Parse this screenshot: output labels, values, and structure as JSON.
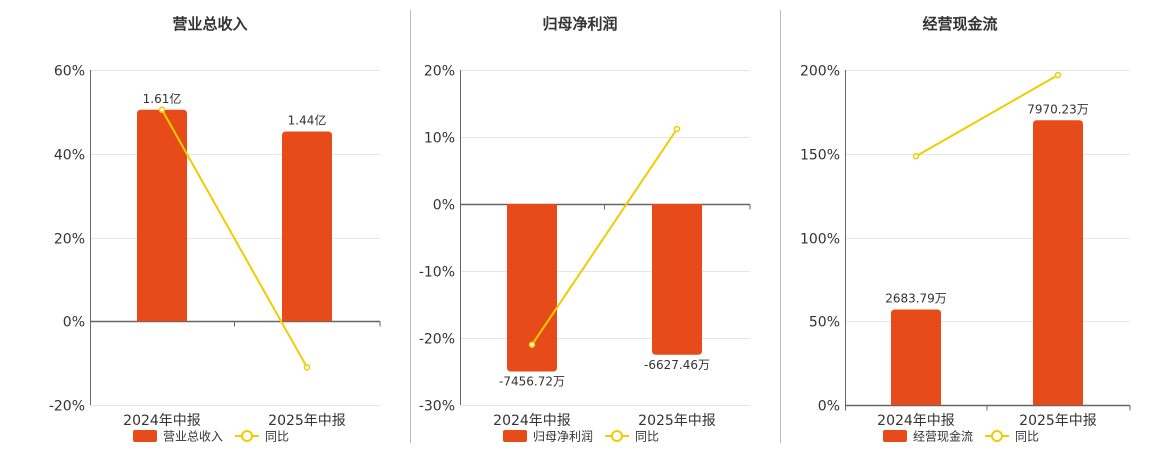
{
  "colors": {
    "bar": "#E84B1A",
    "line": "#F0CC00",
    "axis": "#666666",
    "grid": "#E6E6E6",
    "divider": "#BBBBBB"
  },
  "chart_data": [
    {
      "type": "bar",
      "title": "营业总收入",
      "categories": [
        "2024年中报",
        "2025年中报"
      ],
      "series": [
        {
          "name": "营业总收入",
          "kind": "bar",
          "values": [
            50.5,
            45.3
          ],
          "labels": [
            "1.61亿",
            "1.44亿"
          ]
        },
        {
          "name": "同比",
          "kind": "line",
          "values": [
            50.5,
            -11.0
          ]
        }
      ],
      "ylim": [
        -20,
        60
      ],
      "yticks": [
        60,
        40,
        20,
        0,
        -20
      ],
      "ytick_labels": [
        "60%",
        "40%",
        "20%",
        "0%",
        "-20%"
      ],
      "legend": [
        "营业总收入",
        "同比"
      ]
    },
    {
      "type": "bar",
      "title": "归母净利润",
      "categories": [
        "2024年中报",
        "2025年中报"
      ],
      "series": [
        {
          "name": "归母净利润",
          "kind": "bar",
          "values": [
            -25.0,
            -22.5
          ],
          "labels": [
            "-7456.72万",
            "-6627.46万"
          ]
        },
        {
          "name": "同比",
          "kind": "line",
          "values": [
            -21.0,
            11.2
          ]
        }
      ],
      "ylim": [
        -30,
        20
      ],
      "yticks": [
        20,
        10,
        0,
        -10,
        -20,
        -30
      ],
      "ytick_labels": [
        "20%",
        "10%",
        "0%",
        "-10%",
        "-20%",
        "-30%"
      ],
      "legend": [
        "归母净利润",
        "同比"
      ]
    },
    {
      "type": "bar",
      "title": "经营现金流",
      "categories": [
        "2024年中报",
        "2025年中报"
      ],
      "series": [
        {
          "name": "经营现金流",
          "kind": "bar",
          "values": [
            57.0,
            170.0
          ],
          "labels": [
            "2683.79万",
            "7970.23万"
          ]
        },
        {
          "name": "同比",
          "kind": "line",
          "values": [
            148.5,
            197.0
          ]
        }
      ],
      "ylim": [
        0,
        200
      ],
      "yticks": [
        200,
        150,
        100,
        50,
        0
      ],
      "ytick_labels": [
        "200%",
        "150%",
        "100%",
        "50%",
        "0%"
      ],
      "legend": [
        "经营现金流",
        "同比"
      ]
    }
  ]
}
